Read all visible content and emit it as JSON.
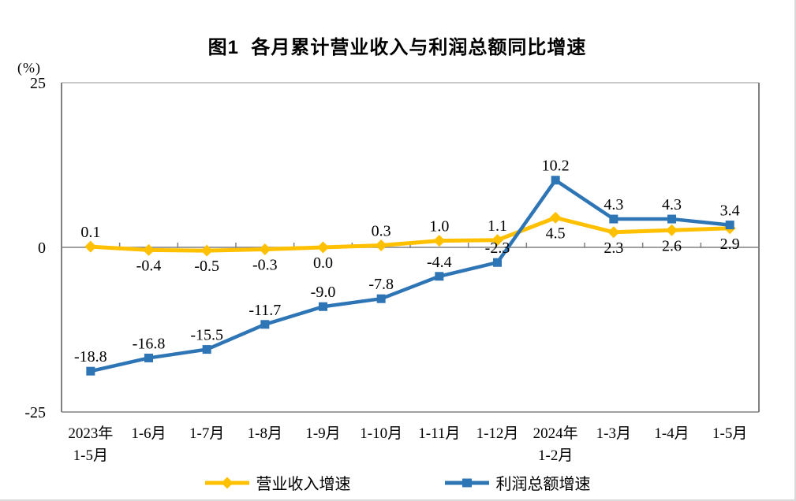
{
  "title": "图1  各月累计营业收入与利润总额同比增速",
  "unit_label": "(%)",
  "chart_data": {
    "type": "line",
    "categories": [
      [
        "2023年",
        "1-5月"
      ],
      [
        "1-6月"
      ],
      [
        "1-7月"
      ],
      [
        "1-8月"
      ],
      [
        "1-9月"
      ],
      [
        "1-10月"
      ],
      [
        "1-11月"
      ],
      [
        "1-12月"
      ],
      [
        "2024年",
        "1-2月"
      ],
      [
        "1-3月"
      ],
      [
        "1-4月"
      ],
      [
        "1-5月"
      ]
    ],
    "series": [
      {
        "name": "营业收入增速",
        "color": "#FFC000",
        "marker": "diamond",
        "values": [
          0.1,
          -0.4,
          -0.5,
          -0.3,
          0.0,
          0.3,
          1.0,
          1.1,
          4.5,
          2.3,
          2.6,
          2.9
        ],
        "label_positions": [
          "above",
          "below",
          "below",
          "below",
          "below",
          "above",
          "above",
          "above",
          "below",
          "below",
          "below",
          "below"
        ]
      },
      {
        "name": "利润总额增速",
        "color": "#2E75B6",
        "marker": "square",
        "values": [
          -18.8,
          -16.8,
          -15.5,
          -11.7,
          -9.0,
          -7.8,
          -4.4,
          -2.3,
          10.2,
          4.3,
          4.3,
          3.4
        ],
        "label_positions": [
          "above",
          "above",
          "above",
          "above",
          "above",
          "above",
          "above",
          "above",
          "above",
          "above",
          "above",
          "above"
        ]
      }
    ],
    "ylim": [
      -25,
      25
    ],
    "yticks": [
      25,
      0,
      -25
    ],
    "grid": false,
    "legend_position": "bottom",
    "axis_color": "#808080",
    "frame_light_color": "#b7b7b7"
  }
}
